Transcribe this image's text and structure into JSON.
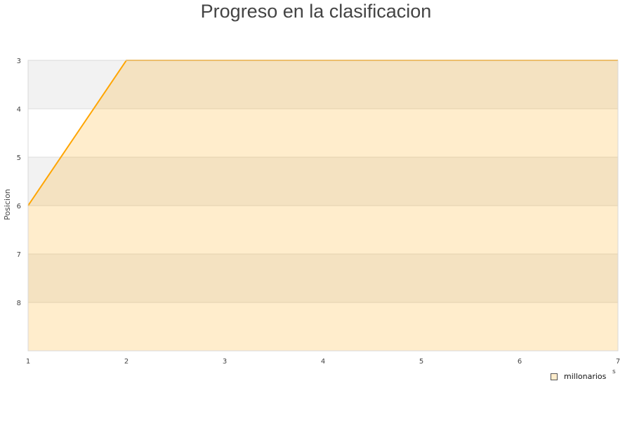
{
  "chart_data": {
    "type": "area",
    "title": "Progreso en la clasificacion",
    "ylabel": "Posicion",
    "xlabel_fragment": "s",
    "x": [
      1,
      2,
      3,
      4,
      5,
      6,
      7
    ],
    "series": [
      {
        "name": "millonarios",
        "values": [
          6,
          3,
          3,
          3,
          3,
          3,
          3
        ],
        "color": "#ffa500"
      }
    ],
    "xlim": [
      1,
      7
    ],
    "ylim": [
      3,
      9
    ],
    "y_inverted": true,
    "yticks": [
      3,
      4,
      5,
      6,
      7,
      8
    ],
    "xticks": [
      1,
      2,
      3,
      4,
      5,
      6,
      7
    ],
    "grid": true,
    "band_color": "#f2f2f2",
    "legend_position": "bottom-right"
  }
}
